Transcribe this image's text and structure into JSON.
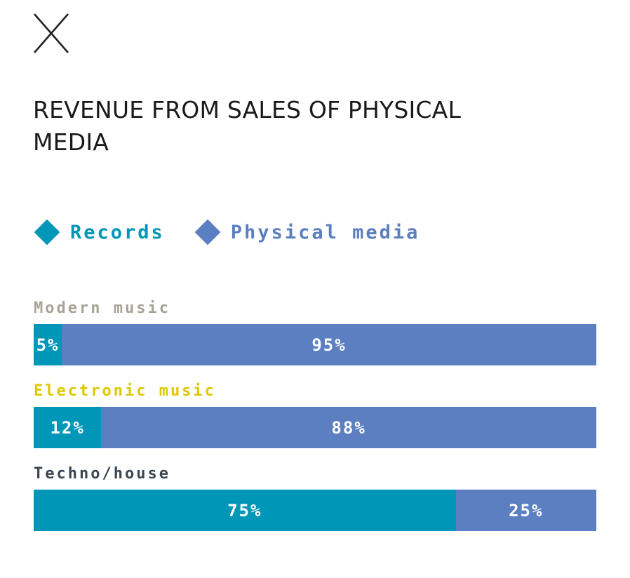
{
  "title": "REVENUE FROM SALES OF PHYSICAL MEDIA",
  "close_icon": "close-icon",
  "colors": {
    "records": "#0096b8",
    "physical_media": "#5b7fc0",
    "title": "#1a1a1a",
    "close": "#222222"
  },
  "chart_data": {
    "type": "bar",
    "stacked": true,
    "orientation": "horizontal",
    "normalized": true,
    "title": "REVENUE FROM SALES OF PHYSICAL MEDIA",
    "legend": {
      "position": "top-left",
      "items": [
        {
          "label": "Records",
          "color": "#0096b8",
          "icon": "diamond-icon"
        },
        {
          "label": "Physical media",
          "color": "#5b7fc0",
          "icon": "diamond-icon"
        }
      ]
    },
    "categories": [
      {
        "label": "Modern music",
        "label_color": "#a6a595"
      },
      {
        "label": "Electronic music",
        "label_color": "#ddc800"
      },
      {
        "label": "Techno/house",
        "label_color": "#3b4550"
      }
    ],
    "series": [
      {
        "name": "Records",
        "color": "#0096b8",
        "values": [
          5,
          12,
          75
        ],
        "labels": [
          "5%",
          "12%",
          "75%"
        ]
      },
      {
        "name": "Physical media",
        "color": "#5b7fc0",
        "values": [
          95,
          88,
          25
        ],
        "labels": [
          "95%",
          "88%",
          "25%"
        ]
      }
    ],
    "xlim": [
      0,
      100
    ],
    "grid": false,
    "axes": false
  }
}
